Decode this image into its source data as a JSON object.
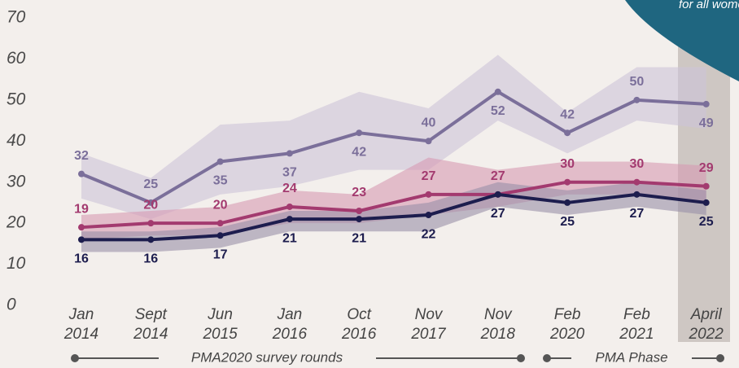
{
  "chart_data": {
    "type": "line",
    "categories": [
      [
        "Jan",
        "2014"
      ],
      [
        "Sept",
        "2014"
      ],
      [
        "Jun",
        "2015"
      ],
      [
        "Jan",
        "2016"
      ],
      [
        "Oct",
        "2016"
      ],
      [
        "Nov",
        "2017"
      ],
      [
        "Nov",
        "2018"
      ],
      [
        "Feb",
        "2020"
      ],
      [
        "Feb",
        "2021"
      ],
      [
        "April",
        "2022"
      ]
    ],
    "series": [
      {
        "color": "#7b6f9a",
        "band_color": "#cdc3d8",
        "values": [
          32,
          25,
          35,
          37,
          42,
          40,
          52,
          42,
          50,
          49
        ],
        "lower": [
          26,
          21,
          27,
          29,
          33,
          33,
          45,
          37,
          45,
          43
        ],
        "upper": [
          37,
          31,
          44,
          45,
          52,
          48,
          61,
          47,
          58,
          58
        ]
      },
      {
        "color": "#a33a6f",
        "band_color": "#d79ab2",
        "values": [
          19,
          20,
          20,
          24,
          23,
          27,
          27,
          30,
          30,
          29
        ],
        "lower": [
          16,
          17,
          17,
          20,
          20,
          22,
          24,
          27,
          27,
          25
        ],
        "upper": [
          22,
          23,
          24,
          28,
          27,
          36,
          33,
          35,
          35,
          34
        ]
      },
      {
        "color": "#1d1d4e",
        "band_color": "#9a8fa8",
        "values": [
          16,
          16,
          17,
          21,
          21,
          22,
          27,
          25,
          27,
          25
        ],
        "lower": [
          13,
          13,
          14,
          18,
          18,
          18,
          24,
          22,
          24,
          22
        ],
        "upper": [
          18,
          18,
          19,
          23,
          23,
          25,
          30,
          28,
          30,
          28
        ]
      }
    ],
    "ylim": [
      0,
      70
    ],
    "yticks": [
      0,
      10,
      20,
      30,
      40,
      50,
      60,
      70
    ],
    "annotations": [
      "PMA2020 survey rounds",
      "PMA Phase",
      "for all wome"
    ]
  }
}
